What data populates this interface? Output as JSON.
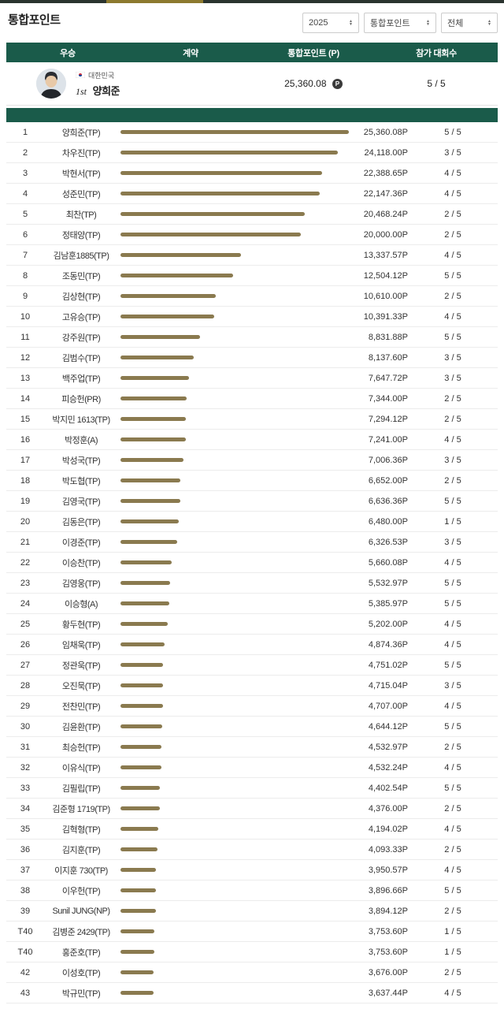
{
  "page": {
    "title": "통합포인트"
  },
  "filters": [
    {
      "value": "2025"
    },
    {
      "value": "통합포인트"
    },
    {
      "value": "전체"
    }
  ],
  "table": {
    "headers": [
      "우승",
      "계약",
      "통합포인트 (P)",
      "참가 대회수"
    ],
    "featured": {
      "country": "대한민국",
      "rank_label": "1st",
      "name": "양희준",
      "points": "25,360.08",
      "points_badge": "P",
      "events": "5 / 5"
    },
    "max_points": 25360.08,
    "rows": [
      {
        "rank": "1",
        "name": "양희준(TP)",
        "points": "25,360.08P",
        "points_value": 25360.08,
        "events": "5 / 5"
      },
      {
        "rank": "2",
        "name": "차우진(TP)",
        "points": "24,118.00P",
        "points_value": 24118.0,
        "events": "3 / 5"
      },
      {
        "rank": "3",
        "name": "박현서(TP)",
        "points": "22,388.65P",
        "points_value": 22388.65,
        "events": "4 / 5"
      },
      {
        "rank": "4",
        "name": "성준민(TP)",
        "points": "22,147.36P",
        "points_value": 22147.36,
        "events": "4 / 5"
      },
      {
        "rank": "5",
        "name": "최찬(TP)",
        "points": "20,468.24P",
        "points_value": 20468.24,
        "events": "2 / 5"
      },
      {
        "rank": "6",
        "name": "정태양(TP)",
        "points": "20,000.00P",
        "points_value": 20000.0,
        "events": "2 / 5"
      },
      {
        "rank": "7",
        "name": "김남훈1885(TP)",
        "points": "13,337.57P",
        "points_value": 13337.57,
        "events": "4 / 5"
      },
      {
        "rank": "8",
        "name": "조동민(TP)",
        "points": "12,504.12P",
        "points_value": 12504.12,
        "events": "5 / 5"
      },
      {
        "rank": "9",
        "name": "김상현(TP)",
        "points": "10,610.00P",
        "points_value": 10610.0,
        "events": "2 / 5"
      },
      {
        "rank": "10",
        "name": "고유승(TP)",
        "points": "10,391.33P",
        "points_value": 10391.33,
        "events": "4 / 5"
      },
      {
        "rank": "11",
        "name": "강주원(TP)",
        "points": "8,831.88P",
        "points_value": 8831.88,
        "events": "5 / 5"
      },
      {
        "rank": "12",
        "name": "김범수(TP)",
        "points": "8,137.60P",
        "points_value": 8137.6,
        "events": "3 / 5"
      },
      {
        "rank": "13",
        "name": "백주업(TP)",
        "points": "7,647.72P",
        "points_value": 7647.72,
        "events": "3 / 5"
      },
      {
        "rank": "14",
        "name": "피승헌(PR)",
        "points": "7,344.00P",
        "points_value": 7344.0,
        "events": "2 / 5"
      },
      {
        "rank": "15",
        "name": "박지민 1613(TP)",
        "points": "7,294.12P",
        "points_value": 7294.12,
        "events": "2 / 5"
      },
      {
        "rank": "16",
        "name": "박정훈(A)",
        "points": "7,241.00P",
        "points_value": 7241.0,
        "events": "4 / 5"
      },
      {
        "rank": "17",
        "name": "박성국(TP)",
        "points": "7,006.36P",
        "points_value": 7006.36,
        "events": "3 / 5"
      },
      {
        "rank": "18",
        "name": "박도협(TP)",
        "points": "6,652.00P",
        "points_value": 6652.0,
        "events": "2 / 5"
      },
      {
        "rank": "19",
        "name": "김영국(TP)",
        "points": "6,636.36P",
        "points_value": 6636.36,
        "events": "5 / 5"
      },
      {
        "rank": "20",
        "name": "김동은(TP)",
        "points": "6,480.00P",
        "points_value": 6480.0,
        "events": "1 / 5"
      },
      {
        "rank": "21",
        "name": "이경준(TP)",
        "points": "6,326.53P",
        "points_value": 6326.53,
        "events": "3 / 5"
      },
      {
        "rank": "22",
        "name": "이승찬(TP)",
        "points": "5,660.08P",
        "points_value": 5660.08,
        "events": "4 / 5"
      },
      {
        "rank": "23",
        "name": "김영웅(TP)",
        "points": "5,532.97P",
        "points_value": 5532.97,
        "events": "5 / 5"
      },
      {
        "rank": "24",
        "name": "이승형(A)",
        "points": "5,385.97P",
        "points_value": 5385.97,
        "events": "5 / 5"
      },
      {
        "rank": "25",
        "name": "황두현(TP)",
        "points": "5,202.00P",
        "points_value": 5202.0,
        "events": "4 / 5"
      },
      {
        "rank": "26",
        "name": "임채욱(TP)",
        "points": "4,874.36P",
        "points_value": 4874.36,
        "events": "4 / 5"
      },
      {
        "rank": "27",
        "name": "정관욱(TP)",
        "points": "4,751.02P",
        "points_value": 4751.02,
        "events": "5 / 5"
      },
      {
        "rank": "28",
        "name": "오진묵(TP)",
        "points": "4,715.04P",
        "points_value": 4715.04,
        "events": "3 / 5"
      },
      {
        "rank": "29",
        "name": "전찬민(TP)",
        "points": "4,707.00P",
        "points_value": 4707.0,
        "events": "4 / 5"
      },
      {
        "rank": "30",
        "name": "김윤환(TP)",
        "points": "4,644.12P",
        "points_value": 4644.12,
        "events": "5 / 5"
      },
      {
        "rank": "31",
        "name": "최승헌(TP)",
        "points": "4,532.97P",
        "points_value": 4532.97,
        "events": "2 / 5"
      },
      {
        "rank": "32",
        "name": "이유식(TP)",
        "points": "4,532.24P",
        "points_value": 4532.24,
        "events": "4 / 5"
      },
      {
        "rank": "33",
        "name": "김필립(TP)",
        "points": "4,402.54P",
        "points_value": 4402.54,
        "events": "5 / 5"
      },
      {
        "rank": "34",
        "name": "김준형 1719(TP)",
        "points": "4,376.00P",
        "points_value": 4376.0,
        "events": "2 / 5"
      },
      {
        "rank": "35",
        "name": "김혁형(TP)",
        "points": "4,194.02P",
        "points_value": 4194.02,
        "events": "4 / 5"
      },
      {
        "rank": "36",
        "name": "김지훈(TP)",
        "points": "4,093.33P",
        "points_value": 4093.33,
        "events": "2 / 5"
      },
      {
        "rank": "37",
        "name": "이지훈 730(TP)",
        "points": "3,950.57P",
        "points_value": 3950.57,
        "events": "4 / 5"
      },
      {
        "rank": "38",
        "name": "이우헌(TP)",
        "points": "3,896.66P",
        "points_value": 3896.66,
        "events": "5 / 5"
      },
      {
        "rank": "39",
        "name": "Sunil JUNG(NP)",
        "points": "3,894.12P",
        "points_value": 3894.12,
        "events": "2 / 5"
      },
      {
        "rank": "T40",
        "name": "김병준 2429(TP)",
        "points": "3,753.60P",
        "points_value": 3753.6,
        "events": "1 / 5"
      },
      {
        "rank": "T40",
        "name": "홍준호(TP)",
        "points": "3,753.60P",
        "points_value": 3753.6,
        "events": "1 / 5"
      },
      {
        "rank": "42",
        "name": "이성호(TP)",
        "points": "3,676.00P",
        "points_value": 3676.0,
        "events": "2 / 5"
      },
      {
        "rank": "43",
        "name": "박규민(TP)",
        "points": "3,637.44P",
        "points_value": 3637.44,
        "events": "4 / 5"
      }
    ]
  },
  "colors": {
    "header_green": "#1a5b4a",
    "bar_gold": "#8a7a4f",
    "tab_indicator_gold": "#8d7a2f"
  }
}
